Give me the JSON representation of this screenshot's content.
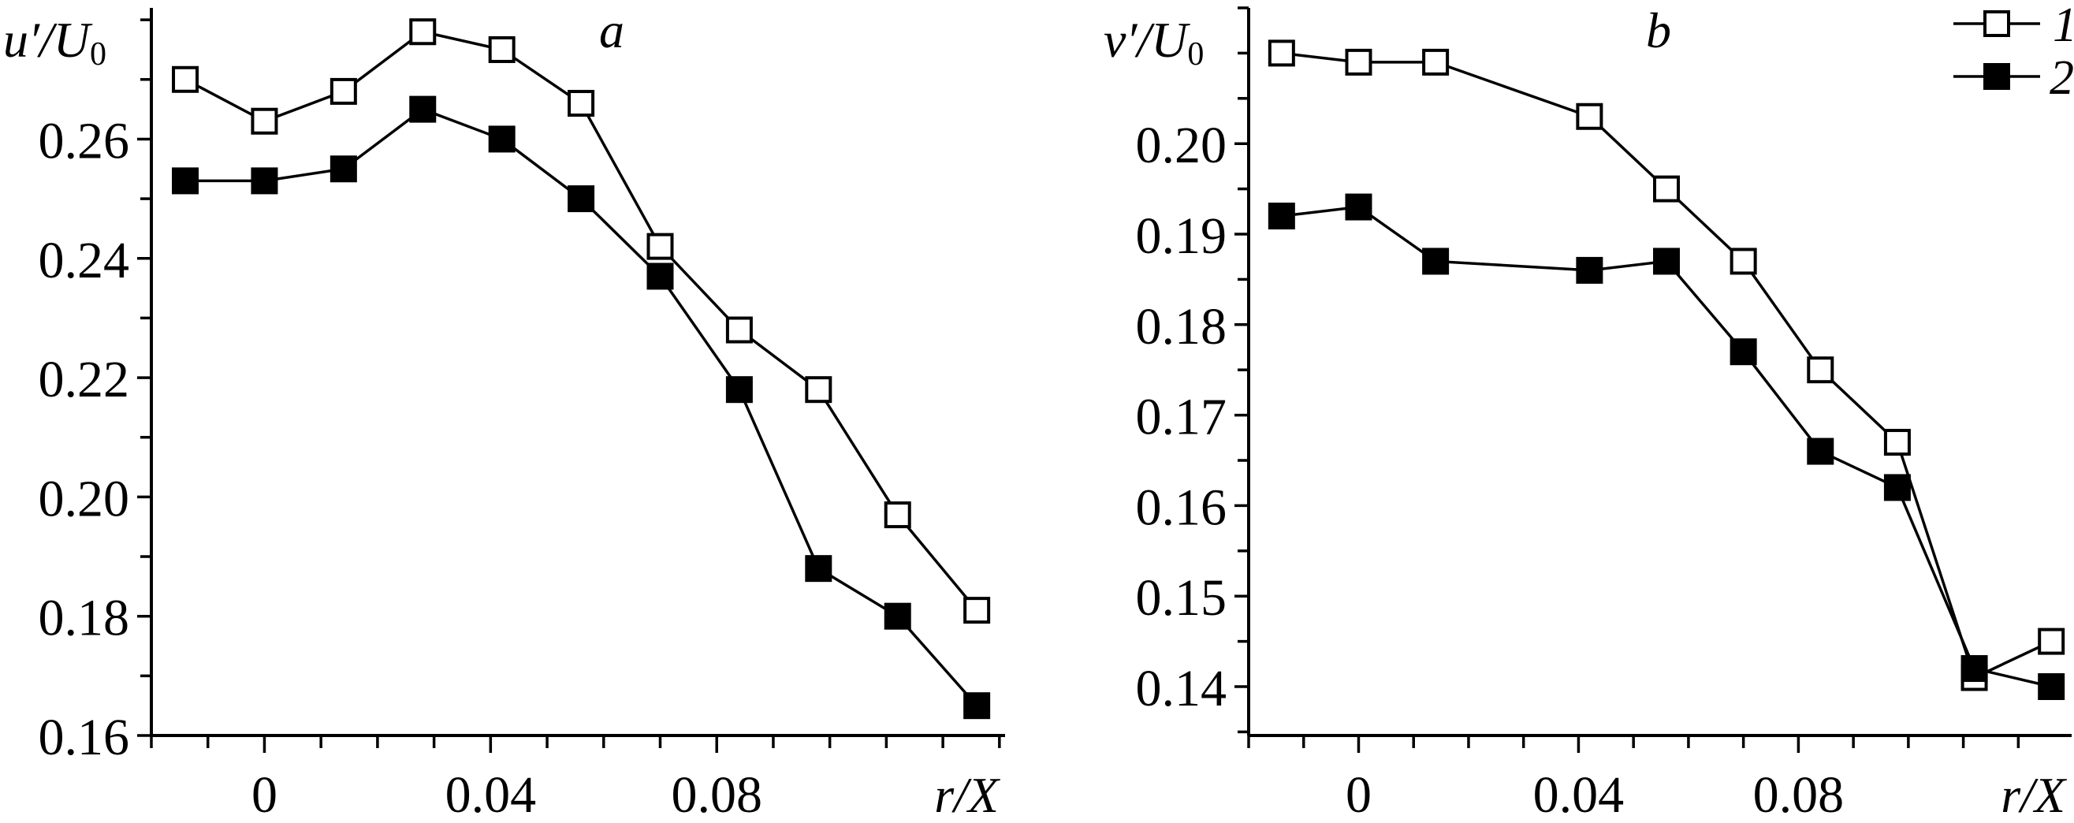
{
  "chart_data": [
    {
      "type": "line",
      "panel_label": "a",
      "ylabel": "u′/U",
      "ylabel_sub": "0",
      "xlabel": "r/X",
      "xlim": [
        -0.02,
        0.131
      ],
      "ylim": [
        0.16,
        0.282
      ],
      "xticks": [
        0,
        0.04,
        0.08
      ],
      "xtick_labels": [
        "0",
        "0.04",
        "0.08"
      ],
      "yticks": [
        0.16,
        0.18,
        0.2,
        0.22,
        0.24,
        0.26
      ],
      "ytick_labels": [
        "0.16",
        "0.18",
        "0.20",
        "0.22",
        "0.24",
        "0.26"
      ],
      "x_minor_step": 0.01,
      "y_minor_step": 0.01,
      "grid": false,
      "series": [
        {
          "name": "1",
          "marker": "open-square",
          "x": [
            -0.014,
            0,
            0.014,
            0.028,
            0.042,
            0.056,
            0.07,
            0.084,
            0.098,
            0.112,
            0.126
          ],
          "y": [
            0.27,
            0.263,
            0.268,
            0.278,
            0.275,
            0.266,
            0.242,
            0.228,
            0.218,
            0.197,
            0.181
          ]
        },
        {
          "name": "2",
          "marker": "filled-square",
          "x": [
            -0.014,
            0,
            0.014,
            0.028,
            0.042,
            0.056,
            0.07,
            0.084,
            0.098,
            0.112,
            0.126
          ],
          "y": [
            0.253,
            0.253,
            0.255,
            0.265,
            0.26,
            0.25,
            0.237,
            0.218,
            0.188,
            0.18,
            0.165
          ]
        }
      ]
    },
    {
      "type": "line",
      "panel_label": "b",
      "ylabel": "v′/U",
      "ylabel_sub": "0",
      "xlabel": "r/X",
      "xlim": [
        -0.02,
        0.1297
      ],
      "ylim": [
        0.1346,
        0.215
      ],
      "xticks": [
        0,
        0.04,
        0.08
      ],
      "xtick_labels": [
        "0",
        "0.04",
        "0.08"
      ],
      "yticks": [
        0.14,
        0.15,
        0.16,
        0.17,
        0.18,
        0.19,
        0.2
      ],
      "ytick_labels": [
        "0.14",
        "0.15",
        "0.16",
        "0.17",
        "0.18",
        "0.19",
        "0.20"
      ],
      "x_minor_step": 0.01,
      "y_minor_step": 0.005,
      "grid": false,
      "legend_position": "top-right",
      "series": [
        {
          "name": "1",
          "marker": "open-square",
          "x": [
            -0.014,
            0,
            0.014,
            0.042,
            0.056,
            0.07,
            0.084,
            0.098,
            0.112,
            0.126
          ],
          "y": [
            0.21,
            0.209,
            0.209,
            0.203,
            0.195,
            0.187,
            0.175,
            0.167,
            0.141,
            0.145
          ]
        },
        {
          "name": "2",
          "marker": "filled-square",
          "x": [
            -0.014,
            0,
            0.014,
            0.042,
            0.056,
            0.07,
            0.084,
            0.098,
            0.112,
            0.126
          ],
          "y": [
            0.192,
            0.193,
            0.187,
            0.186,
            0.187,
            0.177,
            0.166,
            0.162,
            0.142,
            0.14
          ]
        }
      ]
    }
  ],
  "legend": {
    "items": [
      {
        "label": "1",
        "marker": "open-square"
      },
      {
        "label": "2",
        "marker": "filled-square"
      }
    ]
  },
  "colors": {
    "ink": "#000000",
    "background": "#ffffff"
  }
}
